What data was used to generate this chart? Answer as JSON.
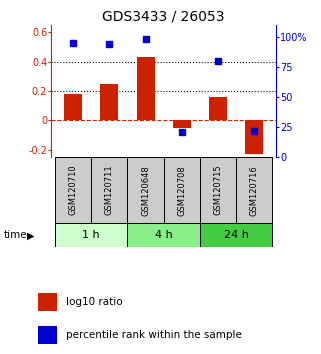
{
  "title": "GDS3433 / 26053",
  "samples": [
    "GSM120710",
    "GSM120711",
    "GSM120648",
    "GSM120708",
    "GSM120715",
    "GSM120716"
  ],
  "log10_ratio": [
    0.18,
    0.25,
    0.43,
    -0.05,
    0.16,
    -0.23
  ],
  "percentile_rank": [
    95,
    94,
    98,
    21,
    80,
    22
  ],
  "bar_color": "#cc2200",
  "dot_color": "#0000cc",
  "groups": [
    {
      "label": "1 h",
      "indices": [
        0,
        1
      ],
      "color": "#ccffcc"
    },
    {
      "label": "4 h",
      "indices": [
        2,
        3
      ],
      "color": "#88ee88"
    },
    {
      "label": "24 h",
      "indices": [
        4,
        5
      ],
      "color": "#44cc44"
    }
  ],
  "ylim_left": [
    -0.25,
    0.65
  ],
  "ylim_right": [
    0,
    110
  ],
  "yticks_left": [
    -0.2,
    0.0,
    0.2,
    0.4,
    0.6
  ],
  "ytick_labels_left": [
    "-0.2",
    "0",
    "0.2",
    "0.4",
    "0.6"
  ],
  "yticks_right": [
    0,
    25,
    50,
    75,
    100
  ],
  "ytick_labels_right": [
    "0",
    "25",
    "50",
    "75",
    "100%"
  ],
  "hlines_dotted": [
    0.2,
    0.4
  ],
  "hline_dashed": 0.0,
  "bar_width": 0.5,
  "dot_size": 25,
  "label_log10": "log10 ratio",
  "label_percentile": "percentile rank within the sample",
  "time_label": "time",
  "background_color": "#ffffff",
  "sample_box_color": "#cccccc",
  "title_fontsize": 10,
  "tick_fontsize": 7,
  "legend_fontsize": 7.5
}
